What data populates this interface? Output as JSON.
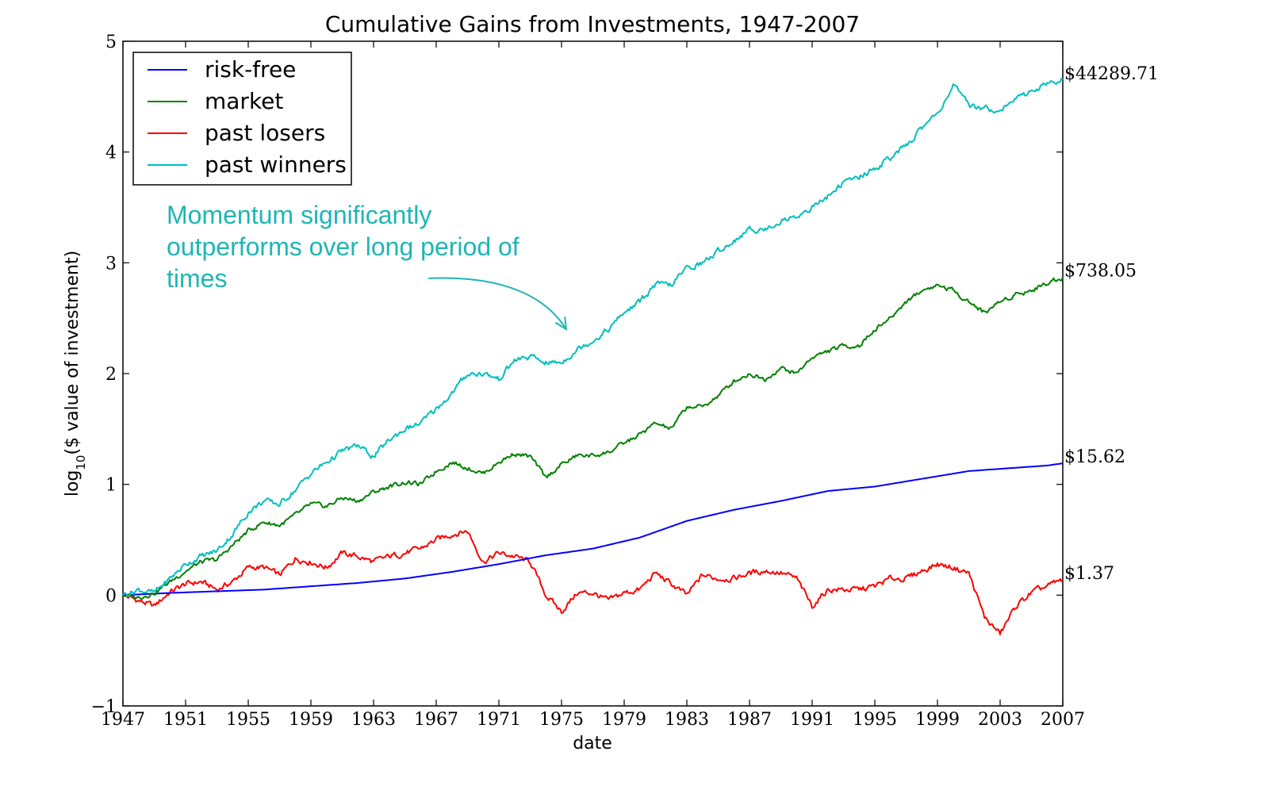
{
  "chart_data": {
    "type": "line",
    "title": "Cumulative Gains from Investments, 1947-2007",
    "xlabel": "date",
    "ylabel_prefix": "log",
    "ylabel_sub": "10",
    "ylabel_suffix": "($ value of investment)",
    "xlim": [
      1947,
      2007
    ],
    "ylim": [
      -1,
      5
    ],
    "x_ticks": [
      1947,
      1951,
      1955,
      1959,
      1963,
      1967,
      1971,
      1975,
      1979,
      1983,
      1987,
      1991,
      1995,
      1999,
      2003,
      2007
    ],
    "x_tick_labels": [
      "1947",
      "1951",
      "1955",
      "1959",
      "1963",
      "1967",
      "1971",
      "1975",
      "1979",
      "1983",
      "1987",
      "1991",
      "1995",
      "1999",
      "2003",
      "2007"
    ],
    "y_ticks": [
      -1,
      0,
      1,
      2,
      3,
      4,
      5
    ],
    "y_tick_labels": [
      "−1",
      "0",
      "1",
      "2",
      "3",
      "4",
      "5"
    ],
    "grid": false,
    "legend_position": "top-left",
    "series": [
      {
        "name": "risk-free",
        "color": "#0000ff",
        "end_label": "$15.62",
        "end_value": 1.19,
        "points": [
          [
            1947,
            0.0
          ],
          [
            1950,
            0.02
          ],
          [
            1953,
            0.035
          ],
          [
            1956,
            0.05
          ],
          [
            1959,
            0.08
          ],
          [
            1962,
            0.11
          ],
          [
            1965,
            0.15
          ],
          [
            1968,
            0.21
          ],
          [
            1971,
            0.28
          ],
          [
            1974,
            0.36
          ],
          [
            1977,
            0.42
          ],
          [
            1980,
            0.52
          ],
          [
            1983,
            0.67
          ],
          [
            1986,
            0.77
          ],
          [
            1989,
            0.85
          ],
          [
            1992,
            0.94
          ],
          [
            1995,
            0.98
          ],
          [
            1998,
            1.05
          ],
          [
            2001,
            1.12
          ],
          [
            2004,
            1.15
          ],
          [
            2006,
            1.17
          ],
          [
            2007,
            1.19
          ]
        ]
      },
      {
        "name": "market",
        "color": "#008000",
        "end_label": "$738.05",
        "end_value": 2.87,
        "points": [
          [
            1947,
            0.0
          ],
          [
            1948,
            -0.02
          ],
          [
            1949,
            0.02
          ],
          [
            1950,
            0.12
          ],
          [
            1951,
            0.22
          ],
          [
            1952,
            0.3
          ],
          [
            1953,
            0.32
          ],
          [
            1954,
            0.45
          ],
          [
            1955,
            0.58
          ],
          [
            1956,
            0.66
          ],
          [
            1957,
            0.63
          ],
          [
            1958,
            0.72
          ],
          [
            1959,
            0.82
          ],
          [
            1960,
            0.8
          ],
          [
            1961,
            0.88
          ],
          [
            1962,
            0.85
          ],
          [
            1963,
            0.93
          ],
          [
            1964,
            0.98
          ],
          [
            1965,
            1.02
          ],
          [
            1966,
            1.0
          ],
          [
            1967,
            1.12
          ],
          [
            1968,
            1.2
          ],
          [
            1969,
            1.15
          ],
          [
            1970,
            1.1
          ],
          [
            1971,
            1.2
          ],
          [
            1972,
            1.28
          ],
          [
            1973,
            1.25
          ],
          [
            1974,
            1.06
          ],
          [
            1975,
            1.18
          ],
          [
            1976,
            1.26
          ],
          [
            1977,
            1.26
          ],
          [
            1978,
            1.29
          ],
          [
            1979,
            1.37
          ],
          [
            1980,
            1.45
          ],
          [
            1981,
            1.55
          ],
          [
            1982,
            1.5
          ],
          [
            1983,
            1.7
          ],
          [
            1984,
            1.7
          ],
          [
            1985,
            1.8
          ],
          [
            1986,
            1.93
          ],
          [
            1987,
            2.0
          ],
          [
            1988,
            1.95
          ],
          [
            1989,
            2.05
          ],
          [
            1990,
            2.0
          ],
          [
            1991,
            2.15
          ],
          [
            1992,
            2.2
          ],
          [
            1993,
            2.25
          ],
          [
            1994,
            2.25
          ],
          [
            1995,
            2.4
          ],
          [
            1996,
            2.5
          ],
          [
            1997,
            2.65
          ],
          [
            1998,
            2.75
          ],
          [
            1999,
            2.8
          ],
          [
            2000,
            2.75
          ],
          [
            2001,
            2.65
          ],
          [
            2002,
            2.55
          ],
          [
            2003,
            2.65
          ],
          [
            2004,
            2.72
          ],
          [
            2005,
            2.75
          ],
          [
            2006,
            2.82
          ],
          [
            2007,
            2.87
          ]
        ]
      },
      {
        "name": "past losers",
        "color": "#ff0000",
        "end_label": "$1.37",
        "end_value": 0.14,
        "points": [
          [
            1947,
            0.0
          ],
          [
            1948,
            -0.05
          ],
          [
            1949,
            -0.1
          ],
          [
            1950,
            0.03
          ],
          [
            1951,
            0.1
          ],
          [
            1952,
            0.12
          ],
          [
            1953,
            0.05
          ],
          [
            1954,
            0.12
          ],
          [
            1955,
            0.25
          ],
          [
            1956,
            0.25
          ],
          [
            1957,
            0.18
          ],
          [
            1958,
            0.33
          ],
          [
            1959,
            0.3
          ],
          [
            1960,
            0.25
          ],
          [
            1961,
            0.38
          ],
          [
            1962,
            0.35
          ],
          [
            1963,
            0.3
          ],
          [
            1964,
            0.35
          ],
          [
            1965,
            0.38
          ],
          [
            1966,
            0.42
          ],
          [
            1967,
            0.5
          ],
          [
            1968,
            0.55
          ],
          [
            1969,
            0.58
          ],
          [
            1970,
            0.3
          ],
          [
            1971,
            0.38
          ],
          [
            1972,
            0.35
          ],
          [
            1973,
            0.3
          ],
          [
            1974,
            0.0
          ],
          [
            1975,
            -0.15
          ],
          [
            1976,
            0.02
          ],
          [
            1977,
            0.02
          ],
          [
            1978,
            -0.05
          ],
          [
            1979,
            0.02
          ],
          [
            1980,
            0.05
          ],
          [
            1981,
            0.2
          ],
          [
            1982,
            0.1
          ],
          [
            1983,
            0.0
          ],
          [
            1984,
            0.18
          ],
          [
            1985,
            0.15
          ],
          [
            1986,
            0.15
          ],
          [
            1987,
            0.2
          ],
          [
            1988,
            0.22
          ],
          [
            1989,
            0.2
          ],
          [
            1990,
            0.15
          ],
          [
            1991,
            -0.1
          ],
          [
            1992,
            0.05
          ],
          [
            1993,
            0.05
          ],
          [
            1994,
            0.05
          ],
          [
            1995,
            0.08
          ],
          [
            1996,
            0.15
          ],
          [
            1997,
            0.15
          ],
          [
            1998,
            0.22
          ],
          [
            1999,
            0.28
          ],
          [
            2000,
            0.25
          ],
          [
            2001,
            0.2
          ],
          [
            2002,
            -0.2
          ],
          [
            2003,
            -0.35
          ],
          [
            2004,
            -0.1
          ],
          [
            2005,
            0.02
          ],
          [
            2006,
            0.08
          ],
          [
            2007,
            0.14
          ]
        ]
      },
      {
        "name": "past winners",
        "color": "#00bfbf",
        "end_label": "$44289.71",
        "end_value": 4.65,
        "points": [
          [
            1947,
            0.0
          ],
          [
            1948,
            0.05
          ],
          [
            1949,
            0.02
          ],
          [
            1950,
            0.15
          ],
          [
            1951,
            0.28
          ],
          [
            1952,
            0.35
          ],
          [
            1953,
            0.4
          ],
          [
            1954,
            0.55
          ],
          [
            1955,
            0.75
          ],
          [
            1956,
            0.85
          ],
          [
            1957,
            0.82
          ],
          [
            1958,
            0.95
          ],
          [
            1959,
            1.1
          ],
          [
            1960,
            1.2
          ],
          [
            1961,
            1.3
          ],
          [
            1962,
            1.35
          ],
          [
            1963,
            1.25
          ],
          [
            1964,
            1.4
          ],
          [
            1965,
            1.5
          ],
          [
            1966,
            1.55
          ],
          [
            1967,
            1.68
          ],
          [
            1968,
            1.82
          ],
          [
            1969,
            2.0
          ],
          [
            1970,
            2.0
          ],
          [
            1971,
            1.95
          ],
          [
            1972,
            2.12
          ],
          [
            1973,
            2.15
          ],
          [
            1974,
            2.1
          ],
          [
            1975,
            2.1
          ],
          [
            1976,
            2.22
          ],
          [
            1977,
            2.3
          ],
          [
            1978,
            2.4
          ],
          [
            1979,
            2.55
          ],
          [
            1980,
            2.65
          ],
          [
            1981,
            2.8
          ],
          [
            1982,
            2.8
          ],
          [
            1983,
            2.95
          ],
          [
            1984,
            3.0
          ],
          [
            1985,
            3.1
          ],
          [
            1986,
            3.2
          ],
          [
            1987,
            3.3
          ],
          [
            1988,
            3.3
          ],
          [
            1989,
            3.38
          ],
          [
            1990,
            3.42
          ],
          [
            1991,
            3.5
          ],
          [
            1992,
            3.6
          ],
          [
            1993,
            3.72
          ],
          [
            1994,
            3.78
          ],
          [
            1995,
            3.85
          ],
          [
            1996,
            3.95
          ],
          [
            1997,
            4.05
          ],
          [
            1998,
            4.22
          ],
          [
            1999,
            4.35
          ],
          [
            2000,
            4.6
          ],
          [
            2001,
            4.42
          ],
          [
            2002,
            4.4
          ],
          [
            2003,
            4.38
          ],
          [
            2004,
            4.48
          ],
          [
            2005,
            4.55
          ],
          [
            2006,
            4.62
          ],
          [
            2007,
            4.65
          ]
        ]
      }
    ],
    "annotation": {
      "lines": [
        "Momentum significantly",
        "outperforms over long period of",
        "times"
      ],
      "color": "#1fb5b5",
      "arrow_from": [
        1966.5,
        2.86
      ],
      "arrow_to": [
        1975.3,
        2.4
      ]
    }
  }
}
